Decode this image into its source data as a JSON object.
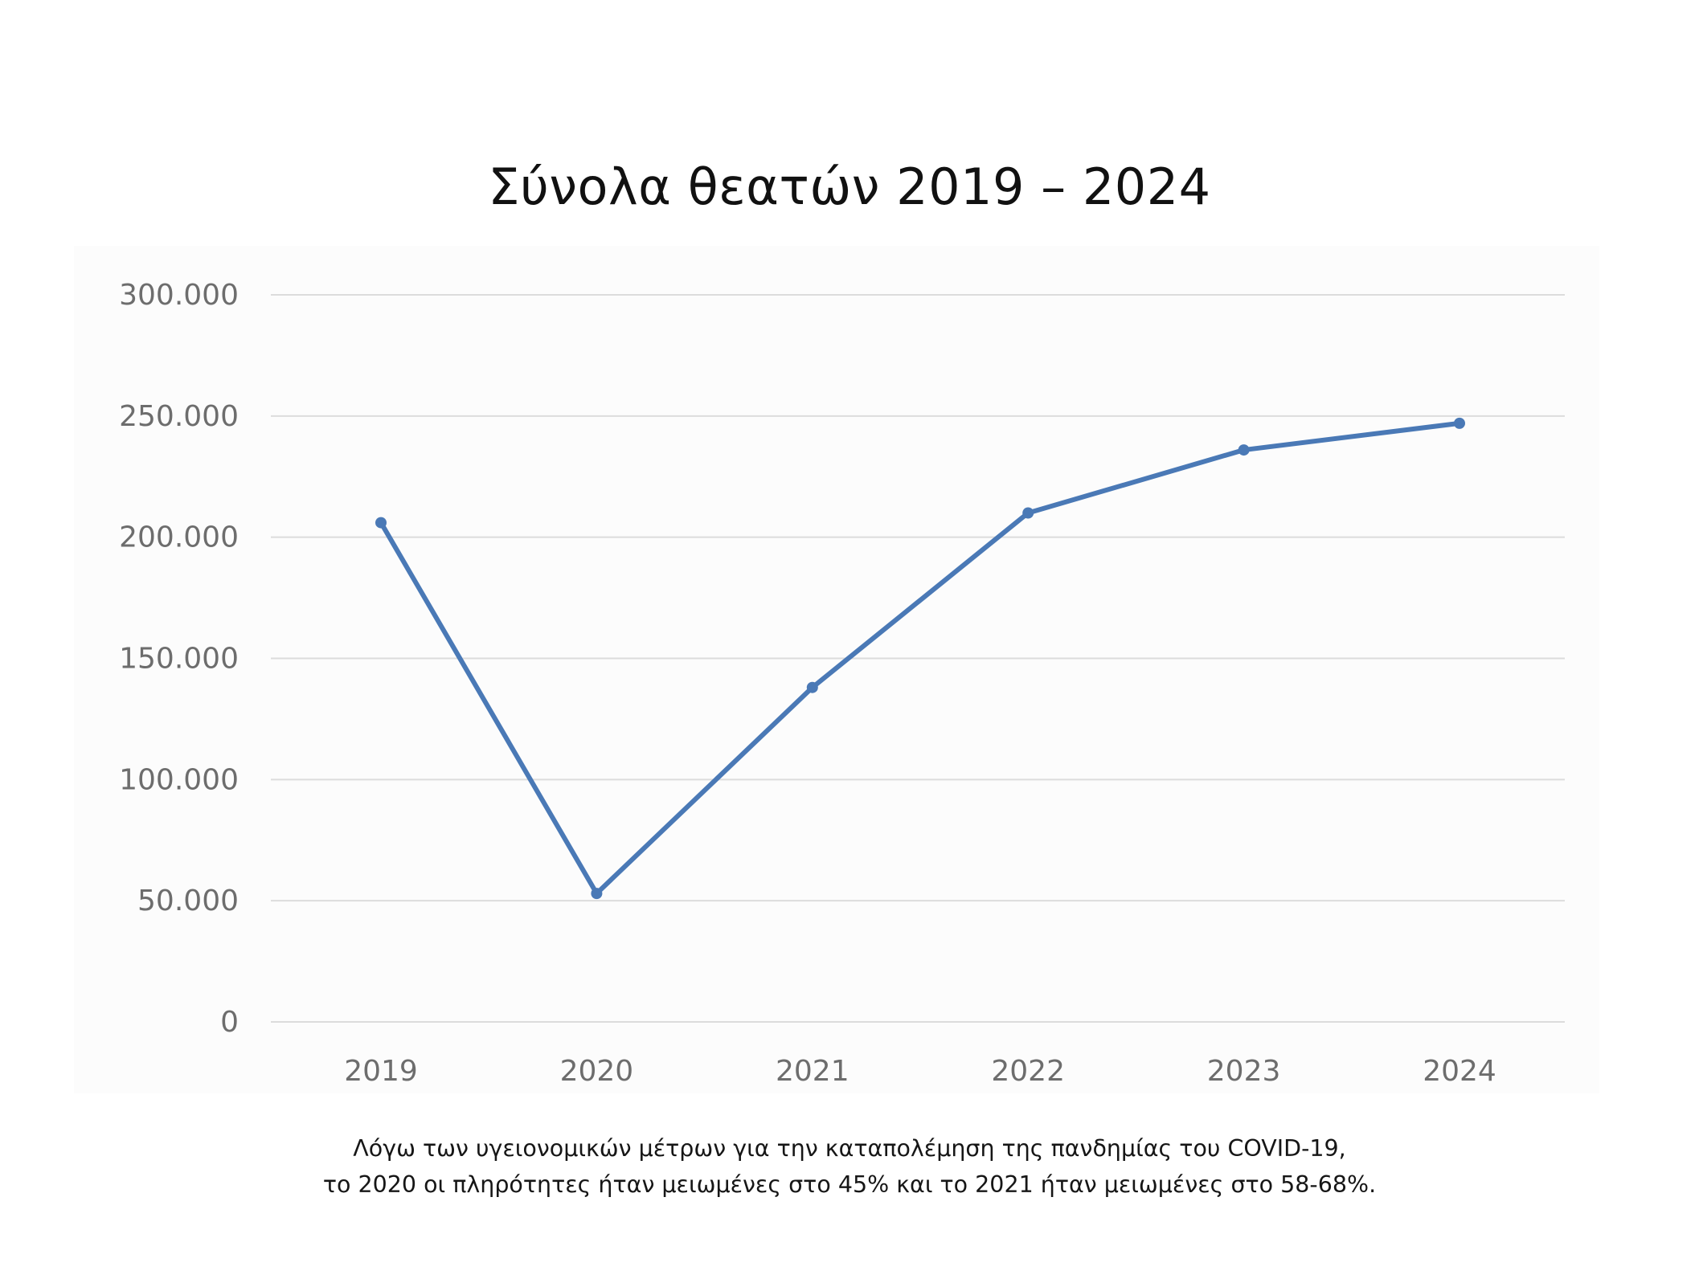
{
  "chart_data": {
    "type": "line",
    "title": "Σύνολα θεατών 2019 – 2024",
    "categories": [
      "2019",
      "2020",
      "2021",
      "2022",
      "2023",
      "2024"
    ],
    "series": [
      {
        "values": [
          206000,
          53000,
          138000,
          210000,
          236000,
          247000
        ]
      }
    ],
    "ylim": [
      0,
      300000
    ],
    "yticks": [
      0,
      50000,
      100000,
      150000,
      200000,
      250000,
      300000
    ],
    "ytick_labels": [
      "0",
      "50.000",
      "100.000",
      "150.000",
      "200.000",
      "250.000",
      "300.000"
    ],
    "xlabel": "",
    "ylabel": "",
    "grid": true,
    "legend": "none",
    "colors": {
      "line": "#4a79b6",
      "grid": "#dcdcdc",
      "tick_text": "#6d6d6d",
      "plot_background": "#fcfcfc"
    }
  },
  "caption": {
    "line1": "Λόγω των υγειονομικών μέτρων για την καταπολέμηση της πανδημίας του COVID-19,",
    "line2": "το 2020 οι πληρότητες ήταν μειωμένες στο 45% και το 2021 ήταν μειωμένες στο 58-68%."
  }
}
